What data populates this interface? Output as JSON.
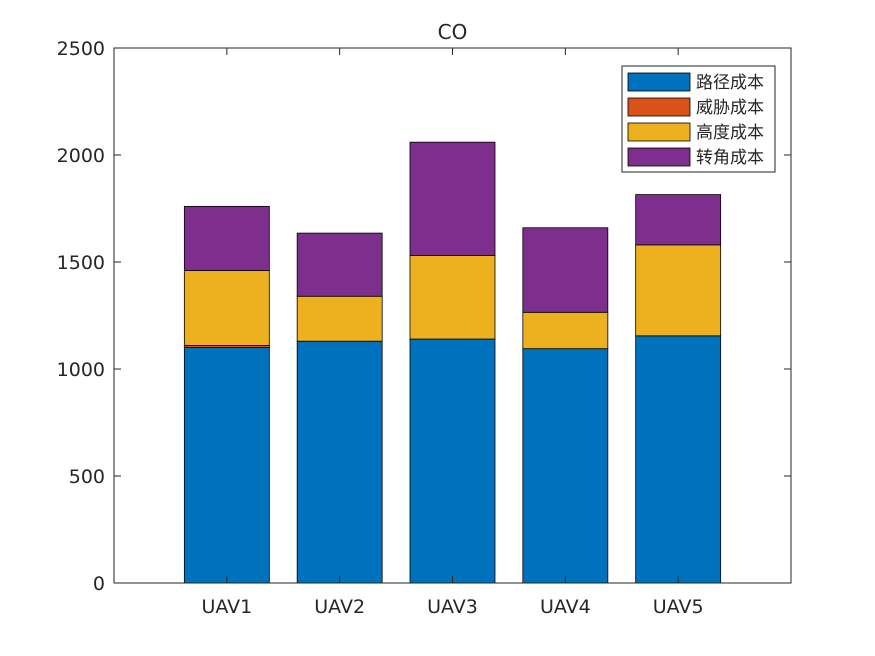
{
  "chart_data": {
    "type": "bar",
    "stacked": true,
    "title": "CO",
    "xlabel": "",
    "ylabel": "",
    "categories": [
      "UAV1",
      "UAV2",
      "UAV3",
      "UAV4",
      "UAV5"
    ],
    "ylim": [
      0,
      2500
    ],
    "yticks": [
      0,
      500,
      1000,
      1500,
      2000,
      2500
    ],
    "grid": false,
    "legend_position": "top-right",
    "series": [
      {
        "name": "路径成本",
        "color": "#0072BD",
        "values": [
          1100,
          1130,
          1140,
          1095,
          1155
        ]
      },
      {
        "name": "威胁成本",
        "color": "#D95319",
        "values": [
          10,
          0,
          0,
          0,
          0
        ]
      },
      {
        "name": "高度成本",
        "color": "#EDB120",
        "values": [
          350,
          210,
          390,
          170,
          425
        ]
      },
      {
        "name": "转角成本",
        "color": "#7E2F8E",
        "values": [
          300,
          295,
          530,
          395,
          235
        ]
      }
    ]
  }
}
